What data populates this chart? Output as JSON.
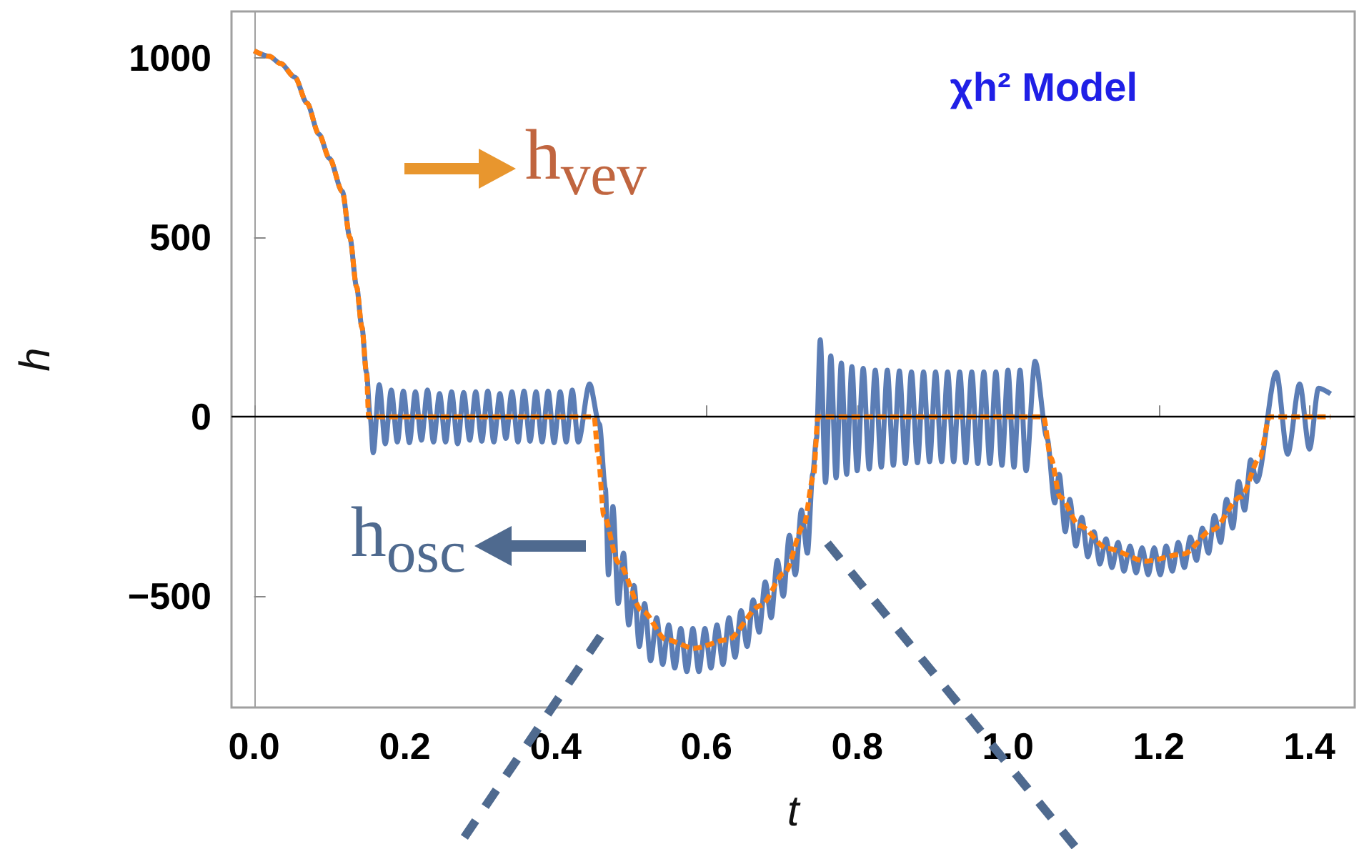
{
  "chart_data": {
    "type": "line",
    "title": "χh² Model",
    "xlabel": "t",
    "ylabel": "h",
    "xlim": [
      -0.03,
      1.46
    ],
    "ylim": [
      -810,
      1130
    ],
    "xticks": [
      {
        "value": 0,
        "label": "0.0"
      },
      0.2,
      0.4,
      0.6,
      0.8,
      {
        "value": 1,
        "label": "1.0"
      },
      1.2,
      1.4
    ],
    "yticks": [
      {
        "value": -500,
        "label": "−500"
      },
      0,
      500,
      1000
    ],
    "grid": false,
    "legend": false,
    "marker": "none",
    "ref_lines": [
      {
        "axis": "y",
        "value": 0,
        "color": "#000000"
      }
    ],
    "series": [
      {
        "name": "h$_{osc}$",
        "color": "#5b7db5",
        "line_style": "solid",
        "x": [
          0,
          0.02,
          0.035,
          0.054,
          0.07,
          0.086,
          0.1,
          0.117,
          0.127,
          0.136,
          0.143,
          0.149,
          0.154,
          0.158,
          0.166,
          0.174,
          0.182,
          0.19,
          0.198,
          0.206,
          0.214,
          0.222,
          0.23,
          0.238,
          0.246,
          0.254,
          0.262,
          0.27,
          0.278,
          0.286,
          0.294,
          0.302,
          0.31,
          0.318,
          0.326,
          0.334,
          0.342,
          0.35,
          0.358,
          0.366,
          0.374,
          0.382,
          0.39,
          0.398,
          0.406,
          0.414,
          0.422,
          0.43,
          0.445,
          0.458,
          0.466,
          0.47,
          0.476,
          0.483,
          0.49,
          0.497,
          0.504,
          0.511,
          0.518,
          0.526,
          0.534,
          0.542,
          0.55,
          0.558,
          0.566,
          0.574,
          0.582,
          0.59,
          0.598,
          0.606,
          0.614,
          0.622,
          0.63,
          0.638,
          0.646,
          0.654,
          0.662,
          0.67,
          0.678,
          0.686,
          0.694,
          0.702,
          0.71,
          0.718,
          0.726,
          0.734,
          0.741,
          0.746,
          0.751,
          0.758,
          0.765,
          0.772,
          0.779,
          0.786,
          0.793,
          0.8,
          0.808,
          0.816,
          0.824,
          0.832,
          0.84,
          0.848,
          0.856,
          0.864,
          0.872,
          0.88,
          0.888,
          0.896,
          0.904,
          0.912,
          0.92,
          0.928,
          0.936,
          0.944,
          0.952,
          0.96,
          0.968,
          0.976,
          0.984,
          0.992,
          1.0,
          1.008,
          1.016,
          1.024,
          1.036,
          1.052,
          1.062,
          1.068,
          1.076,
          1.082,
          1.09,
          1.098,
          1.106,
          1.114,
          1.122,
          1.13,
          1.138,
          1.146,
          1.154,
          1.162,
          1.17,
          1.178,
          1.186,
          1.194,
          1.202,
          1.21,
          1.218,
          1.226,
          1.234,
          1.242,
          1.25,
          1.258,
          1.266,
          1.274,
          1.282,
          1.29,
          1.298,
          1.306,
          1.314,
          1.322,
          1.33,
          1.356,
          1.371,
          1.387,
          1.4,
          1.412,
          1.428
        ],
        "values": [
          1020,
          1005,
          985,
          947,
          875,
          788,
          720,
          628,
          500,
          362,
          250,
          124,
          0,
          -100,
          90,
          -75,
          75,
          -70,
          72,
          -72,
          70,
          -65,
          75,
          -70,
          65,
          -70,
          70,
          -75,
          68,
          -65,
          70,
          -68,
          72,
          -70,
          65,
          -60,
          70,
          -70,
          72,
          -68,
          70,
          -70,
          72,
          -72,
          70,
          -70,
          75,
          -70,
          92,
          -20,
          -200,
          -440,
          -250,
          -520,
          -380,
          -580,
          -470,
          -640,
          -520,
          -680,
          -560,
          -690,
          -580,
          -700,
          -590,
          -710,
          -590,
          -710,
          -590,
          -700,
          -580,
          -690,
          -560,
          -670,
          -540,
          -640,
          -510,
          -600,
          -460,
          -560,
          -400,
          -500,
          -330,
          -440,
          -260,
          -380,
          -160,
          -60,
          215,
          -183,
          170,
          -170,
          150,
          -160,
          140,
          -150,
          135,
          -145,
          130,
          -140,
          130,
          -135,
          128,
          -130,
          125,
          -128,
          125,
          -125,
          125,
          -125,
          125,
          -125,
          125,
          -128,
          125,
          -130,
          125,
          -130,
          125,
          -135,
          130,
          -140,
          130,
          -150,
          155,
          -60,
          -240,
          -160,
          -320,
          -230,
          -360,
          -280,
          -390,
          -320,
          -410,
          -340,
          -420,
          -350,
          -430,
          -360,
          -435,
          -365,
          -440,
          -365,
          -440,
          -360,
          -430,
          -350,
          -420,
          -335,
          -400,
          -310,
          -380,
          -275,
          -350,
          -230,
          -310,
          -180,
          -260,
          -120,
          -180,
          124,
          -104,
          92,
          -90,
          80,
          64
        ]
      },
      {
        "name": "h$_{vev}$",
        "color": "#ff7f0e",
        "line_style": "dashed",
        "x": [
          0,
          0.02,
          0.035,
          0.054,
          0.07,
          0.086,
          0.1,
          0.117,
          0.127,
          0.136,
          0.143,
          0.149,
          0.152,
          0.451,
          0.456,
          0.464,
          0.483,
          0.515,
          0.547,
          0.584,
          0.628,
          0.672,
          0.704,
          0.729,
          0.742,
          0.748,
          1.047,
          1.057,
          1.069,
          1.095,
          1.132,
          1.183,
          1.233,
          1.271,
          1.309,
          1.334,
          1.347,
          1.428
        ],
        "values": [
          1020,
          1005,
          985,
          947,
          875,
          788,
          720,
          628,
          500,
          362,
          250,
          124,
          0,
          0,
          -100,
          -275,
          -406,
          -541,
          -621,
          -645,
          -621,
          -526,
          -434,
          -303,
          -167,
          0,
          0,
          -115,
          -223,
          -303,
          -367,
          -402,
          -382,
          -315,
          -223,
          -115,
          0,
          0
        ]
      }
    ]
  }
}
